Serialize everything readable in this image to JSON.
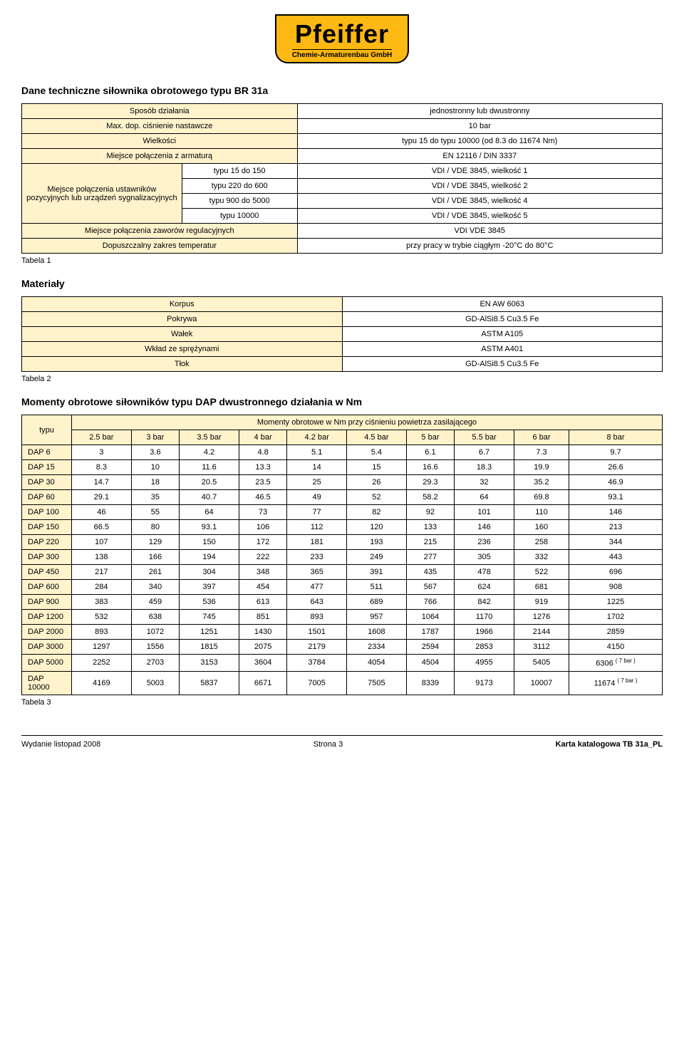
{
  "logo": {
    "brand": "Pfeiffer",
    "sub": "Chemie-Armaturenbau GmbH"
  },
  "section1_title": "Dane techniczne siłownika obrotowego typu BR 31a",
  "table1": {
    "rows": [
      {
        "label": "Sposób działania",
        "value": "jednostronny lub dwustronny"
      },
      {
        "label": "Max. dop. ciśnienie nastawcze",
        "value": "10 bar"
      },
      {
        "label": "Wielkości",
        "value": "typu 15 do typu 10000  (od 8.3 do 11674 Nm)"
      },
      {
        "label": "Miejsce połączenia z armaturą",
        "value": "EN 12116 / DIN 3337"
      }
    ],
    "nested_label": "Miejsce połączenia ustawników pozycyjnych lub urządzeń sygnalizacyjnych",
    "nested": [
      {
        "sub": "typu 15 do 150",
        "value": "VDI / VDE 3845, wielkość 1"
      },
      {
        "sub": "typu 220 do 600",
        "value": "VDI / VDE 3845, wielkość 2"
      },
      {
        "sub": "typu 900 do 5000",
        "value": "VDI / VDE 3845, wielkość 4"
      },
      {
        "sub": "typu 10000",
        "value": "VDI / VDE 3845, wielkość 5"
      }
    ],
    "tail": [
      {
        "label": "Miejsce połączenia zaworów regulacyjnych",
        "value": "VDI VDE 3845"
      },
      {
        "label": "Dopuszczalny zakres temperatur",
        "value": "przy pracy w trybie ciągłym -20°C do 80°C"
      }
    ],
    "caption": "Tabela 1"
  },
  "section2_title": "Materiały",
  "table2": {
    "rows": [
      {
        "label": "Korpus",
        "value": "EN AW 6063"
      },
      {
        "label": "Pokrywa",
        "value": "GD-AlSi8.5 Cu3.5 Fe"
      },
      {
        "label": "Wałek",
        "value": "ASTM A105"
      },
      {
        "label": "Wkład ze sprężynami",
        "value": "ASTM A401"
      },
      {
        "label": "Tłok",
        "value": "GD-AlSi8.5 Cu3.5 Fe"
      }
    ],
    "caption": "Tabela 2"
  },
  "section3_title": "Momenty obrotowe siłowników typu DAP dwustronnego działania w Nm",
  "table3": {
    "corner": "typu",
    "span_header": "Momenty obrotowe w Nm przy ciśnieniu powietrza zasilającego",
    "columns": [
      "2.5 bar",
      "3 bar",
      "3.5 bar",
      "4 bar",
      "4.2 bar",
      "4.5 bar",
      "5 bar",
      "5.5 bar",
      "6 bar",
      "8 bar"
    ],
    "rows": [
      {
        "label": "DAP 6",
        "cells": [
          "3",
          "3.6",
          "4.2",
          "4.8",
          "5.1",
          "5.4",
          "6.1",
          "6.7",
          "7.3",
          "9.7"
        ]
      },
      {
        "label": "DAP 15",
        "cells": [
          "8.3",
          "10",
          "11.6",
          "13.3",
          "14",
          "15",
          "16.6",
          "18.3",
          "19.9",
          "26.6"
        ]
      },
      {
        "label": "DAP 30",
        "cells": [
          "14.7",
          "18",
          "20.5",
          "23.5",
          "25",
          "26",
          "29.3",
          "32",
          "35.2",
          "46.9"
        ]
      },
      {
        "label": "DAP 60",
        "cells": [
          "29.1",
          "35",
          "40.7",
          "46.5",
          "49",
          "52",
          "58.2",
          "64",
          "69.8",
          "93.1"
        ]
      },
      {
        "label": "DAP 100",
        "cells": [
          "46",
          "55",
          "64",
          "73",
          "77",
          "82",
          "92",
          "101",
          "110",
          "146"
        ]
      },
      {
        "label": "DAP 150",
        "cells": [
          "66.5",
          "80",
          "93.1",
          "106",
          "112",
          "120",
          "133",
          "146",
          "160",
          "213"
        ]
      },
      {
        "label": "DAP 220",
        "cells": [
          "107",
          "129",
          "150",
          "172",
          "181",
          "193",
          "215",
          "236",
          "258",
          "344"
        ]
      },
      {
        "label": "DAP 300",
        "cells": [
          "138",
          "166",
          "194",
          "222",
          "233",
          "249",
          "277",
          "305",
          "332",
          "443"
        ]
      },
      {
        "label": "DAP 450",
        "cells": [
          "217",
          "261",
          "304",
          "348",
          "365",
          "391",
          "435",
          "478",
          "522",
          "696"
        ]
      },
      {
        "label": "DAP 600",
        "cells": [
          "284",
          "340",
          "397",
          "454",
          "477",
          "511",
          "567",
          "624",
          "681",
          "908"
        ]
      },
      {
        "label": "DAP 900",
        "cells": [
          "383",
          "459",
          "536",
          "613",
          "643",
          "689",
          "766",
          "842",
          "919",
          "1225"
        ]
      },
      {
        "label": "DAP 1200",
        "cells": [
          "532",
          "638",
          "745",
          "851",
          "893",
          "957",
          "1064",
          "1170",
          "1276",
          "1702"
        ]
      },
      {
        "label": "DAP 2000",
        "cells": [
          "893",
          "1072",
          "1251",
          "1430",
          "1501",
          "1608",
          "1787",
          "1966",
          "2144",
          "2859"
        ]
      },
      {
        "label": "DAP 3000",
        "cells": [
          "1297",
          "1556",
          "1815",
          "2075",
          "2179",
          "2334",
          "2594",
          "2853",
          "3112",
          "4150"
        ]
      },
      {
        "label": "DAP 5000",
        "cells": [
          "2252",
          "2703",
          "3153",
          "3604",
          "3784",
          "4054",
          "4504",
          "4955",
          "5405"
        ],
        "last_cell": "6306",
        "last_sup": "( 7 bar )"
      },
      {
        "label": "DAP 10000",
        "cells": [
          "4169",
          "5003",
          "5837",
          "6671",
          "7005",
          "7505",
          "8339",
          "9173",
          "10007"
        ],
        "last_cell": "11674",
        "last_sup": "( 7 bar )"
      }
    ],
    "caption": "Tabela 3"
  },
  "footer": {
    "left": "Wydanie listopad 2008",
    "center": "Strona 3",
    "right": "Karta katalogowa  TB 31a_PL"
  },
  "colors": {
    "header_bg": "#fff3cc",
    "logo_bg": "#fdb813"
  }
}
